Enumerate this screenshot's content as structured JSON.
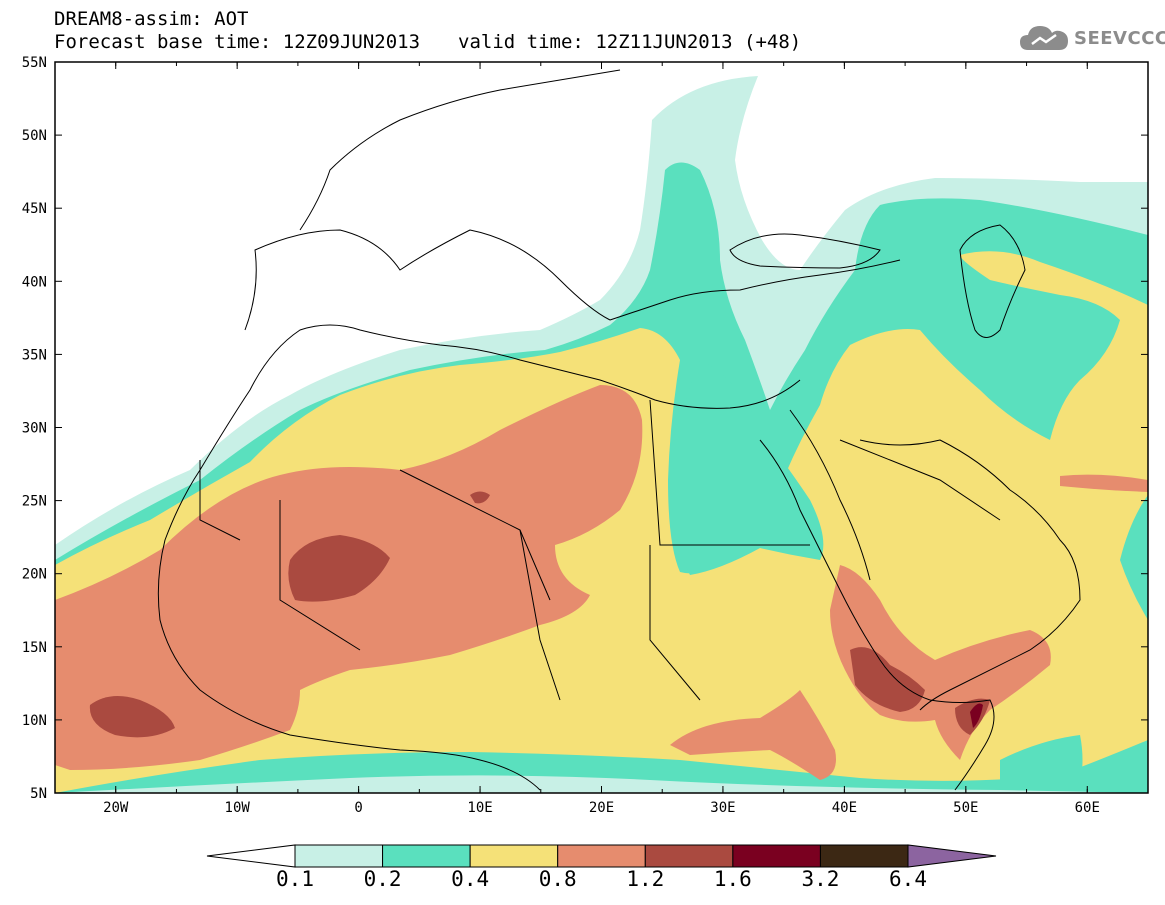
{
  "header": {
    "line1": "DREAM8-assim: AOT",
    "base_time": "Forecast base time: 12Z09JUN2013",
    "valid_time": "valid time: 12Z11JUN2013 (+48)"
  },
  "logo": {
    "text": "SEEVCCC",
    "icon": "cloud-icon",
    "color": "#8c8c8c"
  },
  "map": {
    "lon_range": [
      -25,
      65
    ],
    "lat_range": [
      5,
      55
    ],
    "lon_labels": [
      "20W",
      "10W",
      "0",
      "10E",
      "20E",
      "30E",
      "40E",
      "50E",
      "60E"
    ],
    "lat_labels": [
      "55N",
      "50N",
      "45N",
      "40N",
      "35N",
      "30N",
      "25N",
      "20N",
      "15N",
      "10N",
      "5N"
    ],
    "grid": false
  },
  "colorbar": {
    "labels": [
      "0.1",
      "0.2",
      "0.4",
      "0.8",
      "1.2",
      "1.6",
      "3.2",
      "6.4"
    ],
    "colors": [
      "#ffffff",
      "#c8f0e6",
      "#5ae0be",
      "#f5e178",
      "#e68c6e",
      "#aa4a40",
      "#7a0020",
      "#3c2814",
      "#8c64a0"
    ]
  }
}
